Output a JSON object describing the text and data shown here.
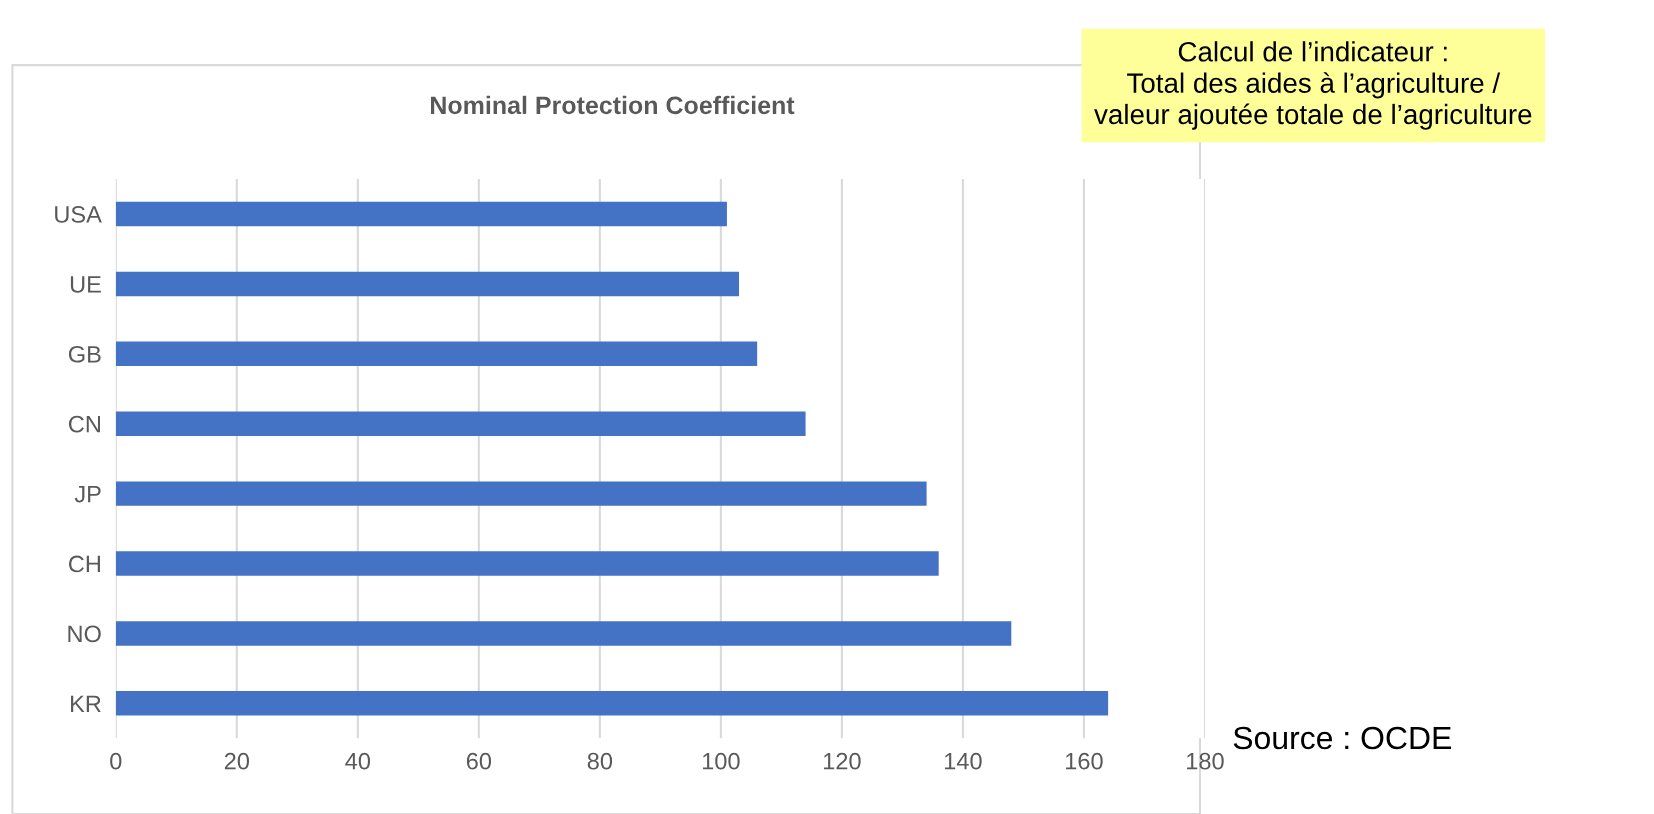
{
  "chart_data": {
    "type": "bar",
    "orientation": "horizontal",
    "title": "Nominal Protection Coefficient",
    "categories": [
      "USA",
      "UE",
      "GB",
      "CN",
      "JP",
      "CH",
      "NO",
      "KR"
    ],
    "values": [
      101,
      103,
      106,
      114,
      134,
      136,
      148,
      164
    ],
    "color": "#4472c4",
    "xlim": [
      0,
      180
    ],
    "xticks": [
      0,
      20,
      40,
      60,
      80,
      100,
      120,
      140,
      160,
      180
    ],
    "grid": "x",
    "legend": false,
    "annotations": [
      "Calcul de l’indicateur :\nTotal des aides à l’agriculture /\nvaleur ajoutée totale de l’agriculture",
      "Source : OCDE"
    ]
  }
}
